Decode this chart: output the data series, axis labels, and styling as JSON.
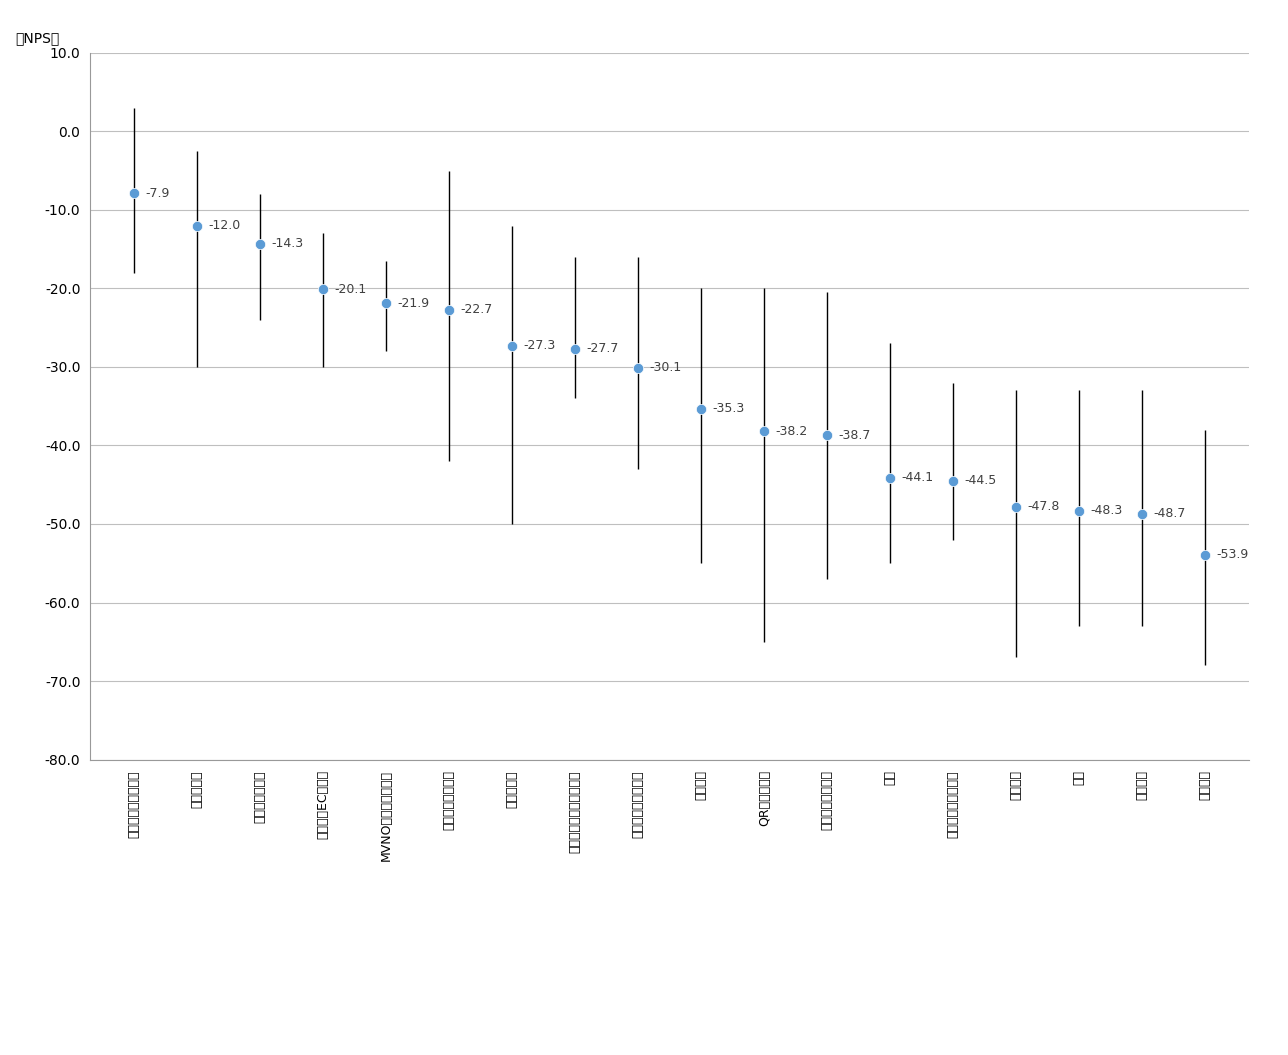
{
  "categories": [
    "プレステージ化粧品",
    "通販化粧品",
    "ネットスーパー",
    "アパレルECサイト",
    "MVNO・サブブランド",
    "動画配信サービス",
    "ネット証券",
    "ダイレクト型自動車保険",
    "セキュリティソフト",
    "人材派遣",
    "QRコード決済",
    "クレジットカード",
    "銀行",
    "代理店型自動車保険",
    "生命保険",
    "電力",
    "都市ガス",
    "対面証券"
  ],
  "mean_values": [
    -7.9,
    -12.0,
    -14.3,
    -20.1,
    -21.9,
    -22.7,
    -27.3,
    -27.7,
    -30.1,
    -35.3,
    -38.2,
    -38.7,
    -44.1,
    -44.5,
    -47.8,
    -48.3,
    -48.7,
    -53.9
  ],
  "max_values": [
    3.0,
    -2.5,
    -8.0,
    -13.0,
    -16.5,
    -5.0,
    -12.0,
    -16.0,
    -16.0,
    -20.0,
    -20.0,
    -20.5,
    -27.0,
    -32.0,
    -33.0,
    -33.0,
    -33.0,
    -38.0
  ],
  "min_values": [
    -18.0,
    -30.0,
    -24.0,
    -30.0,
    -28.0,
    -42.0,
    -50.0,
    -34.0,
    -43.0,
    -55.0,
    -65.0,
    -57.0,
    -55.0,
    -52.0,
    -67.0,
    -63.0,
    -63.0,
    -68.0
  ],
  "ylim": [
    -80.0,
    10.0
  ],
  "yticks": [
    10.0,
    0.0,
    -10.0,
    -20.0,
    -30.0,
    -40.0,
    -50.0,
    -60.0,
    -70.0,
    -80.0
  ],
  "ylabel": "（NPS）",
  "dot_color": "#5B9BD5",
  "line_color": "#000000",
  "background_color": "#ffffff",
  "grid_color": "#bfbfbf",
  "label_fontsize": 9,
  "ylabel_fontsize": 10,
  "ytick_fontsize": 10,
  "value_label_color": "#404040"
}
